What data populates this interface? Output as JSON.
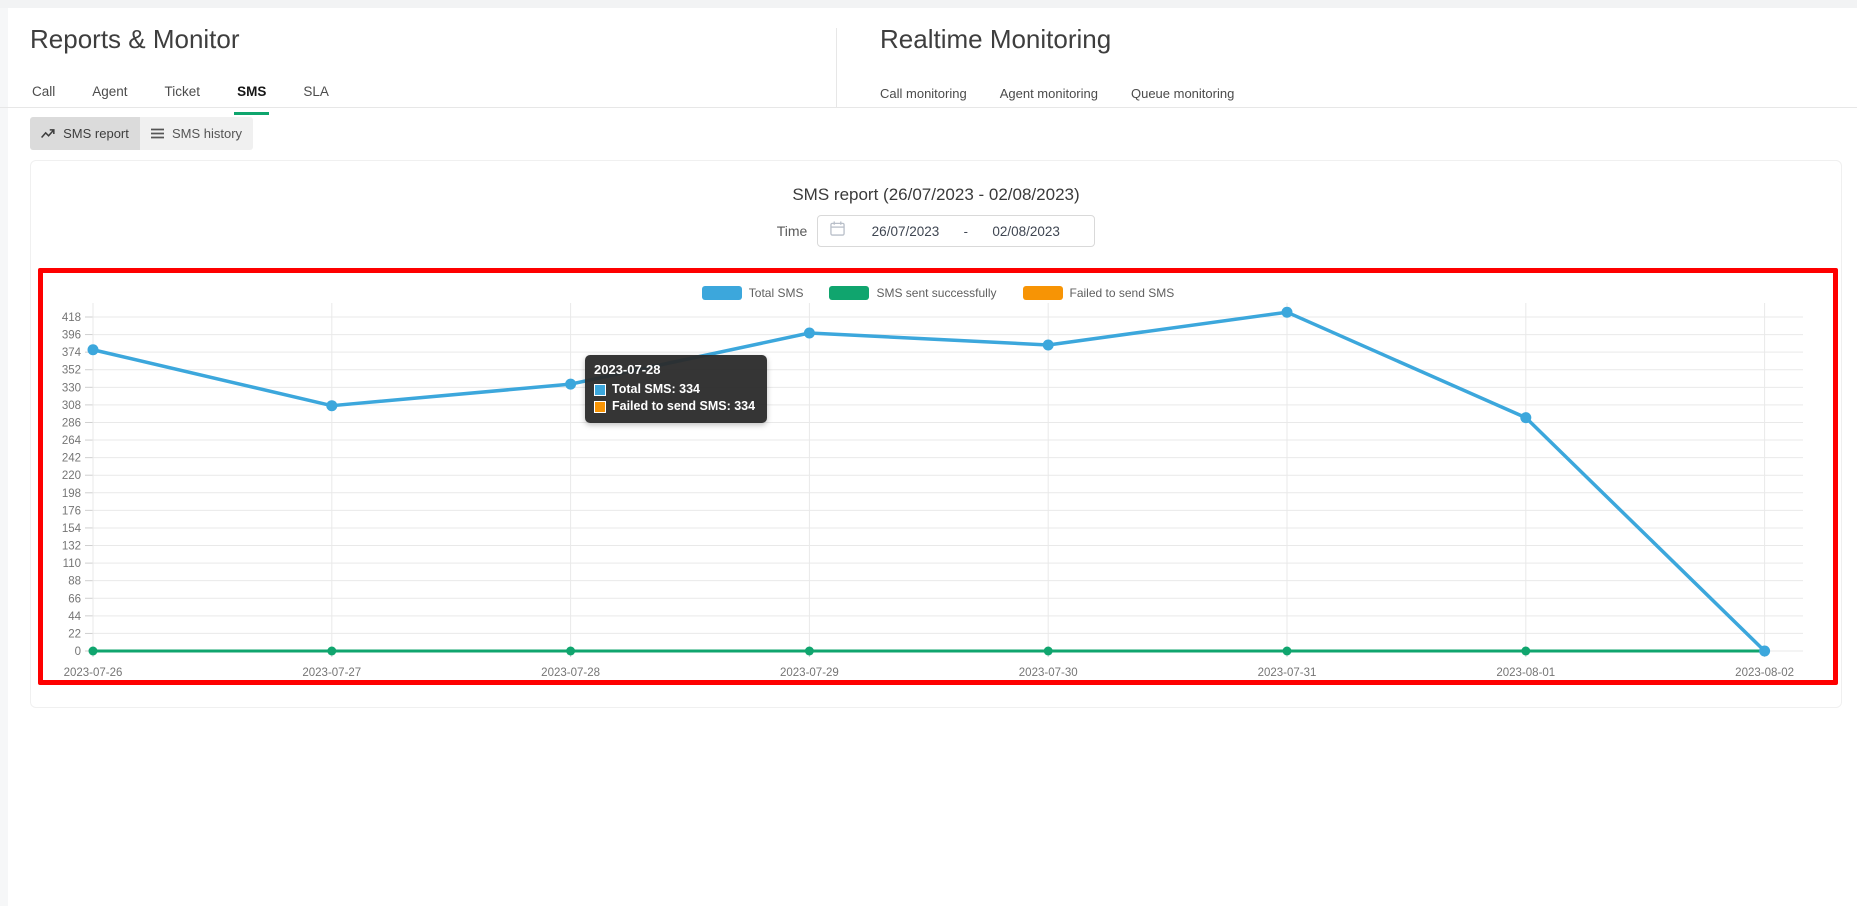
{
  "header": {
    "left_title": "Reports & Monitor",
    "tabs": [
      {
        "label": "Call",
        "active": false
      },
      {
        "label": "Agent",
        "active": false
      },
      {
        "label": "Ticket",
        "active": false
      },
      {
        "label": "SMS",
        "active": true
      },
      {
        "label": "SLA",
        "active": false
      }
    ],
    "right_title": "Realtime Monitoring",
    "monitoring_links": [
      "Call monitoring",
      "Agent monitoring",
      "Queue monitoring"
    ]
  },
  "toolbar": {
    "report_label": "SMS report",
    "history_label": "SMS history"
  },
  "report": {
    "title": "SMS report (26/07/2023 - 02/08/2023)",
    "time_label": "Time",
    "date_from": "26/07/2023",
    "date_separator": "-",
    "date_to": "02/08/2023"
  },
  "colors": {
    "total_sms": "#3ca7dc",
    "sent_success": "#10a56e",
    "failed": "#f79405",
    "annotation": "#fe0000",
    "gridline": "#e9e9e9",
    "axis_tick": "#cfcfcf",
    "axis_label": "#757575",
    "tab_underline": "#0ea56d"
  },
  "chart_data": {
    "type": "line",
    "title": "SMS report (26/07/2023 - 02/08/2023)",
    "x": [
      "2023-07-26",
      "2023-07-27",
      "2023-07-28",
      "2023-07-29",
      "2023-07-30",
      "2023-07-31",
      "2023-08-01",
      "2023-08-02"
    ],
    "series": [
      {
        "name": "Total SMS",
        "color": "#3ca7dc",
        "values": [
          377,
          307,
          334,
          398,
          383,
          424,
          292,
          0
        ]
      },
      {
        "name": "SMS sent successfully",
        "color": "#10a56e",
        "values": [
          0,
          0,
          0,
          0,
          0,
          0,
          0,
          0
        ]
      },
      {
        "name": "Failed to send SMS",
        "color": "#f79405",
        "values": [
          null,
          null,
          334,
          null,
          null,
          null,
          null,
          null
        ]
      }
    ],
    "ylim": [
      0,
      418
    ],
    "ytick_step": 22,
    "grid": true,
    "legend_position": "top-center"
  },
  "tooltip": {
    "title": "2023-07-28",
    "anchor_x": "2023-07-28",
    "rows": [
      {
        "series": "Total SMS",
        "color": "#3ca7dc",
        "label": "Total SMS: 334"
      },
      {
        "series": "Failed to send SMS",
        "color": "#f79405",
        "label": "Failed to send SMS: 334"
      }
    ]
  }
}
